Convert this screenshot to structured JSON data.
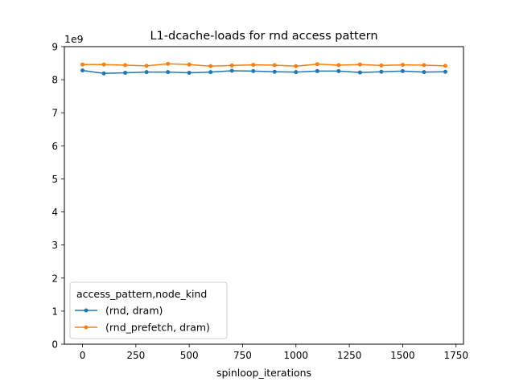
{
  "chart_data": {
    "type": "line",
    "title": "L1-dcache-loads for rnd access pattern",
    "xlabel": "spinloop_iterations",
    "ylabel": "",
    "y_offset_label": "1e9",
    "xlim": [
      -85,
      1785
    ],
    "ylim": [
      0,
      9
    ],
    "x_ticks": [
      0,
      250,
      500,
      750,
      1000,
      1250,
      1500,
      1750
    ],
    "y_ticks": [
      0,
      1,
      2,
      3,
      4,
      5,
      6,
      7,
      8,
      9
    ],
    "grid": false,
    "x": [
      0,
      100,
      200,
      300,
      400,
      500,
      600,
      700,
      800,
      900,
      1000,
      1100,
      1200,
      1300,
      1400,
      1500,
      1600,
      1700
    ],
    "series": [
      {
        "name": "(rnd, dram)",
        "color": "#1f77b4",
        "values": [
          8.28,
          8.19,
          8.21,
          8.23,
          8.23,
          8.21,
          8.23,
          8.27,
          8.26,
          8.24,
          8.23,
          8.26,
          8.26,
          8.22,
          8.24,
          8.26,
          8.23,
          8.24
        ]
      },
      {
        "name": "(rnd_prefetch, dram)",
        "color": "#ff7f0e",
        "values": [
          8.46,
          8.46,
          8.44,
          8.42,
          8.48,
          8.46,
          8.41,
          8.43,
          8.45,
          8.44,
          8.41,
          8.47,
          8.44,
          8.46,
          8.43,
          8.45,
          8.44,
          8.42
        ]
      }
    ],
    "legend": {
      "title": "access_pattern,node_kind",
      "placement": "lower-left"
    }
  }
}
